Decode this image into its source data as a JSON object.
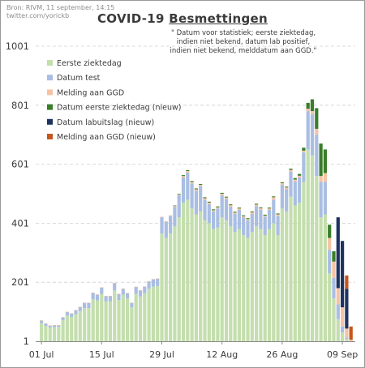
{
  "source_line1": "Bron: RIVM, 11 september, 14:15",
  "source_line2": "twitter.com/yorickb",
  "title_part1": "COVID-19 ",
  "title_part2": "Besmettingen",
  "subtitle_lines": [
    "\" Datum voor statistiek; eerste ziektedag,",
    "indien niet bekend, datum lab positief,",
    "indien niet bekend, melddatum aan GGD.\""
  ],
  "colors": {
    "eerste": "#c4deae",
    "datum_test": "#a9bee2",
    "melding": "#f6c3a5",
    "eerste_nieuw": "#3a7d2a",
    "lab_nieuw": "#1f3360",
    "melding_nieuw": "#c5561c",
    "grid": "#d0d0d0"
  },
  "chart_data": {
    "type": "bar",
    "stacked": true,
    "title": "COVID-19 Besmettingen",
    "ylim": [
      1,
      1001
    ],
    "yticks": [
      1,
      201,
      401,
      601,
      801,
      1001
    ],
    "xtick_labels": [
      {
        "day": 0,
        "label": "01 Jul"
      },
      {
        "day": 14,
        "label": "15 Jul"
      },
      {
        "day": 28,
        "label": "29 Jul"
      },
      {
        "day": 42,
        "label": "12 Aug"
      },
      {
        "day": 56,
        "label": "26 Aug"
      },
      {
        "day": 70,
        "label": "09 Sep"
      }
    ],
    "grid": true,
    "legend_position": "top-left",
    "legend": [
      "Eerste ziektedag",
      "Datum test",
      "Melding aan GGD",
      "Datum eerste ziektedag (nieuw)",
      "Datum labuitslag (nieuw)",
      "Melding aan GGD (nieuw)"
    ],
    "categories": [
      "01 Jul",
      "02 Jul",
      "03 Jul",
      "04 Jul",
      "05 Jul",
      "06 Jul",
      "07 Jul",
      "08 Jul",
      "09 Jul",
      "10 Jul",
      "11 Jul",
      "12 Jul",
      "13 Jul",
      "14 Jul",
      "15 Jul",
      "16 Jul",
      "17 Jul",
      "18 Jul",
      "19 Jul",
      "20 Jul",
      "21 Jul",
      "22 Jul",
      "23 Jul",
      "24 Jul",
      "25 Jul",
      "26 Jul",
      "27 Jul",
      "28 Jul",
      "29 Jul",
      "30 Jul",
      "31 Jul",
      "01 Aug",
      "02 Aug",
      "03 Aug",
      "04 Aug",
      "05 Aug",
      "06 Aug",
      "07 Aug",
      "08 Aug",
      "09 Aug",
      "10 Aug",
      "11 Aug",
      "12 Aug",
      "13 Aug",
      "14 Aug",
      "15 Aug",
      "16 Aug",
      "17 Aug",
      "18 Aug",
      "19 Aug",
      "20 Aug",
      "21 Aug",
      "22 Aug",
      "23 Aug",
      "24 Aug",
      "25 Aug",
      "26 Aug",
      "27 Aug",
      "28 Aug",
      "29 Aug",
      "30 Aug",
      "31 Aug",
      "01 Sep",
      "02 Sep",
      "03 Sep",
      "04 Sep",
      "05 Sep",
      "06 Sep",
      "07 Sep",
      "08 Sep",
      "09 Sep",
      "10 Sep",
      "11 Sep"
    ],
    "series": [
      {
        "name": "Eerste ziektedag",
        "color_key": "eerste",
        "values": [
          62,
          52,
          47,
          48,
          49,
          71,
          87,
          82,
          92,
          102,
          112,
          112,
          142,
          138,
          160,
          135,
          135,
          172,
          140,
          158,
          145,
          115,
          160,
          152,
          163,
          178,
          185,
          187,
          365,
          350,
          365,
          390,
          420,
          470,
          480,
          450,
          430,
          440,
          410,
          400,
          380,
          385,
          420,
          410,
          390,
          370,
          380,
          360,
          350,
          370,
          390,
          380,
          360,
          380,
          400,
          360,
          450,
          440,
          490,
          460,
          470,
          540,
          650,
          630,
          560,
          420,
          430,
          230,
          145,
          75,
          30,
          8,
          0
        ]
      },
      {
        "name": "Datum test",
        "color_key": "datum_test",
        "values": [
          8,
          8,
          6,
          6,
          5,
          10,
          12,
          12,
          13,
          14,
          18,
          18,
          22,
          20,
          22,
          18,
          18,
          25,
          20,
          20,
          18,
          15,
          24,
          20,
          22,
          25,
          25,
          25,
          55,
          55,
          60,
          65,
          75,
          85,
          92,
          85,
          80,
          85,
          70,
          65,
          60,
          65,
          75,
          72,
          66,
          62,
          65,
          60,
          60,
          62,
          68,
          66,
          62,
          65,
          80,
          65,
          80,
          75,
          85,
          82,
          85,
          100,
          130,
          140,
          140,
          120,
          110,
          80,
          70,
          50,
          20,
          5,
          0
        ]
      },
      {
        "name": "Melding aan GGD",
        "color_key": "melding",
        "values": [
          1,
          1,
          1,
          1,
          1,
          1,
          1,
          1,
          1,
          1,
          1,
          1,
          1,
          1,
          1,
          1,
          1,
          1,
          1,
          1,
          1,
          1,
          1,
          1,
          1,
          1,
          1,
          1,
          2,
          2,
          2,
          3,
          3,
          5,
          5,
          5,
          5,
          5,
          5,
          5,
          4,
          4,
          5,
          5,
          5,
          4,
          5,
          4,
          4,
          5,
          5,
          5,
          4,
          5,
          8,
          5,
          6,
          6,
          6,
          6,
          6,
          6,
          8,
          10,
          20,
          20,
          30,
          40,
          55,
          55,
          65,
          30,
          5
        ]
      },
      {
        "name": "Datum eerste ziektedag (nieuw)",
        "color_key": "eerste_nieuw",
        "values": [
          0,
          0,
          0,
          0,
          0,
          0,
          0,
          0,
          0,
          0,
          0,
          0,
          0,
          0,
          0,
          0,
          0,
          0,
          0,
          0,
          0,
          0,
          0,
          0,
          0,
          0,
          0,
          0,
          0,
          0,
          0,
          2,
          2,
          3,
          3,
          3,
          3,
          3,
          3,
          3,
          3,
          3,
          3,
          3,
          3,
          3,
          3,
          3,
          3,
          3,
          3,
          3,
          3,
          3,
          3,
          3,
          3,
          3,
          4,
          5,
          6,
          10,
          20,
          40,
          70,
          110,
          80,
          45,
          35,
          0,
          0,
          0,
          0
        ]
      },
      {
        "name": "Datum labuitslag (nieuw)",
        "color_key": "lab_nieuw",
        "values": [
          0,
          0,
          0,
          0,
          0,
          0,
          0,
          0,
          0,
          0,
          0,
          0,
          0,
          0,
          0,
          0,
          0,
          0,
          0,
          0,
          0,
          0,
          0,
          0,
          0,
          0,
          0,
          0,
          0,
          0,
          0,
          0,
          0,
          0,
          0,
          0,
          0,
          0,
          0,
          0,
          0,
          0,
          0,
          0,
          0,
          0,
          0,
          0,
          0,
          0,
          0,
          0,
          0,
          0,
          0,
          0,
          0,
          0,
          0,
          0,
          0,
          0,
          0,
          0,
          0,
          0,
          0,
          0,
          0,
          240,
          225,
          135,
          0
        ]
      },
      {
        "name": "Melding aan GGD (nieuw)",
        "color_key": "melding_nieuw",
        "values": [
          0,
          0,
          0,
          0,
          0,
          0,
          0,
          0,
          0,
          0,
          0,
          0,
          0,
          0,
          0,
          0,
          0,
          0,
          0,
          0,
          0,
          0,
          0,
          0,
          0,
          0,
          0,
          0,
          0,
          0,
          0,
          0,
          0,
          0,
          0,
          0,
          0,
          0,
          0,
          0,
          0,
          0,
          0,
          0,
          0,
          0,
          0,
          0,
          0,
          0,
          0,
          0,
          0,
          0,
          0,
          0,
          0,
          0,
          0,
          0,
          0,
          0,
          0,
          0,
          0,
          0,
          0,
          0,
          0,
          0,
          0,
          45,
          45
        ]
      }
    ]
  }
}
